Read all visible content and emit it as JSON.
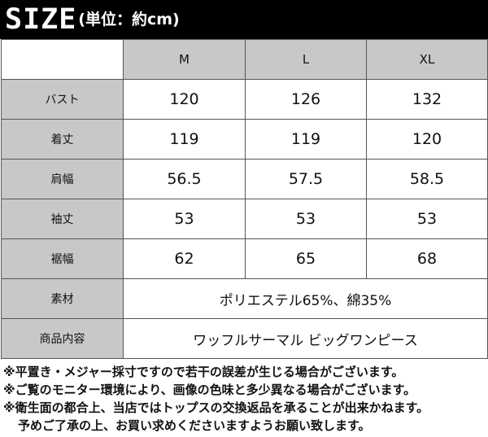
{
  "header": {
    "title_big": "SIZE",
    "title_small": "(単位：約cm)"
  },
  "table": {
    "columns": [
      "M",
      "L",
      "XL"
    ],
    "rows": [
      {
        "label": "バスト",
        "values": [
          "120",
          "126",
          "132"
        ]
      },
      {
        "label": "着丈",
        "values": [
          "119",
          "119",
          "120"
        ]
      },
      {
        "label": "肩幅",
        "values": [
          "56.5",
          "57.5",
          "58.5"
        ]
      },
      {
        "label": "袖丈",
        "values": [
          "53",
          "53",
          "53"
        ]
      },
      {
        "label": "裾幅",
        "values": [
          "62",
          "65",
          "68"
        ]
      }
    ],
    "material": {
      "label": "素材",
      "value": "ポリエステル65%、綿35%"
    },
    "contents": {
      "label": "商品内容",
      "value": "ワッフルサーマル ビッグワンピース"
    }
  },
  "notes": [
    "※平置き・メジャー採寸ですので若干の誤差が生じる場合がございます。",
    "※ご覧のモニター環境により、画像の色味と多少異なる場合がございます。",
    "※衛生面の都合上、当店ではトップスの交換返品を承ることが出来かねます。",
    "予めご了承の上、お買い求めくださいますようお願い致します。"
  ]
}
